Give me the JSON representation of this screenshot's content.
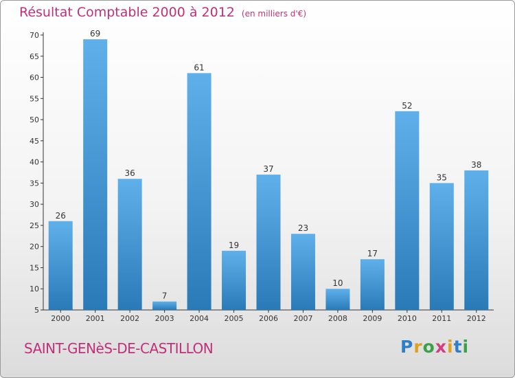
{
  "header": {
    "title": "Résultat Comptable 2000 à 2012",
    "unit": "(en milliers d'€)"
  },
  "footer": {
    "commune": "SAINT-GENèS-DE-CASTILLON",
    "logo_letters": [
      "P",
      "r",
      "o",
      "x",
      "i",
      "t",
      "i"
    ],
    "logo_colors": [
      "#2f7fc8",
      "#e0a020",
      "#3aa04a",
      "#d04080",
      "#e0a020",
      "#2f7fc8",
      "#3aa04a"
    ]
  },
  "colors": {
    "bar_top": "#5fb0ea",
    "bar_bottom": "#2a7ab8",
    "title": "#c0307a"
  },
  "chart_data": {
    "type": "bar",
    "title": "Résultat Comptable 2000 à 2012",
    "subtitle": "(en milliers d'€)",
    "categories": [
      "2000",
      "2001",
      "2002",
      "2003",
      "2004",
      "2005",
      "2006",
      "2007",
      "2008",
      "2009",
      "2010",
      "2011",
      "2012"
    ],
    "values": [
      26,
      69,
      36,
      7,
      61,
      19,
      37,
      23,
      10,
      17,
      52,
      35,
      38
    ],
    "ylim": [
      5,
      70
    ],
    "yticks": [
      5,
      10,
      15,
      20,
      25,
      30,
      35,
      40,
      45,
      50,
      55,
      60,
      65,
      70
    ],
    "grid": false,
    "data_labels": true
  }
}
